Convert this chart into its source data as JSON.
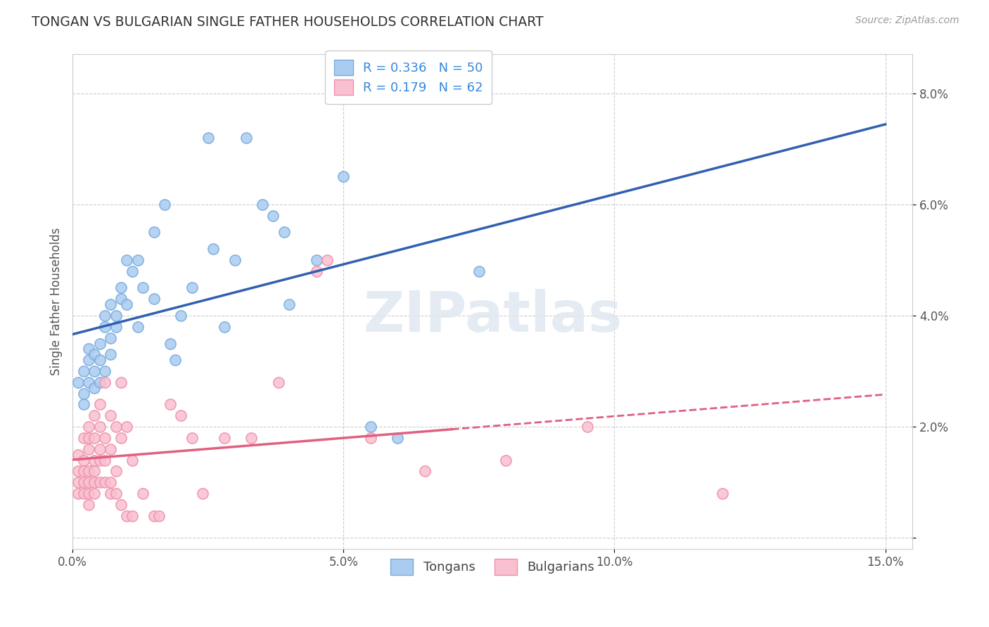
{
  "title": "TONGAN VS BULGARIAN SINGLE FATHER HOUSEHOLDS CORRELATION CHART",
  "source": "Source: ZipAtlas.com",
  "xlabel": "",
  "ylabel": "Single Father Households",
  "xlim": [
    0.0,
    0.155
  ],
  "ylim": [
    -0.002,
    0.087
  ],
  "xticks": [
    0.0,
    0.05,
    0.1,
    0.15
  ],
  "xticklabels": [
    "0.0%",
    "5.0%",
    "10.0%",
    "15.0%"
  ],
  "yticks": [
    0.0,
    0.02,
    0.04,
    0.06,
    0.08
  ],
  "yticklabels": [
    "",
    "2.0%",
    "4.0%",
    "6.0%",
    "8.0%"
  ],
  "tongan_color_fill": "#aaccf0",
  "tongan_color_edge": "#7aabde",
  "bulgarian_color_fill": "#f8c0d0",
  "bulgarian_color_edge": "#f090a8",
  "tongan_line_color": "#3060b0",
  "bulgarian_line_color": "#e06080",
  "R_tongan": 0.336,
  "N_tongan": 50,
  "R_bulgarian": 0.179,
  "N_bulgarian": 62,
  "legend_label_color": "#3388dd",
  "tongan_scatter": [
    [
      0.001,
      0.028
    ],
    [
      0.002,
      0.026
    ],
    [
      0.002,
      0.03
    ],
    [
      0.002,
      0.024
    ],
    [
      0.003,
      0.032
    ],
    [
      0.003,
      0.034
    ],
    [
      0.003,
      0.028
    ],
    [
      0.004,
      0.03
    ],
    [
      0.004,
      0.027
    ],
    [
      0.004,
      0.033
    ],
    [
      0.005,
      0.028
    ],
    [
      0.005,
      0.035
    ],
    [
      0.005,
      0.032
    ],
    [
      0.006,
      0.04
    ],
    [
      0.006,
      0.03
    ],
    [
      0.006,
      0.038
    ],
    [
      0.007,
      0.033
    ],
    [
      0.007,
      0.036
    ],
    [
      0.007,
      0.042
    ],
    [
      0.008,
      0.04
    ],
    [
      0.008,
      0.038
    ],
    [
      0.009,
      0.043
    ],
    [
      0.009,
      0.045
    ],
    [
      0.01,
      0.05
    ],
    [
      0.01,
      0.042
    ],
    [
      0.011,
      0.048
    ],
    [
      0.012,
      0.05
    ],
    [
      0.012,
      0.038
    ],
    [
      0.013,
      0.045
    ],
    [
      0.015,
      0.055
    ],
    [
      0.015,
      0.043
    ],
    [
      0.017,
      0.06
    ],
    [
      0.018,
      0.035
    ],
    [
      0.019,
      0.032
    ],
    [
      0.02,
      0.04
    ],
    [
      0.022,
      0.045
    ],
    [
      0.025,
      0.072
    ],
    [
      0.026,
      0.052
    ],
    [
      0.028,
      0.038
    ],
    [
      0.03,
      0.05
    ],
    [
      0.032,
      0.072
    ],
    [
      0.035,
      0.06
    ],
    [
      0.037,
      0.058
    ],
    [
      0.039,
      0.055
    ],
    [
      0.04,
      0.042
    ],
    [
      0.045,
      0.05
    ],
    [
      0.05,
      0.065
    ],
    [
      0.055,
      0.02
    ],
    [
      0.06,
      0.018
    ],
    [
      0.075,
      0.048
    ]
  ],
  "bulgarian_scatter": [
    [
      0.001,
      0.01
    ],
    [
      0.001,
      0.012
    ],
    [
      0.001,
      0.008
    ],
    [
      0.001,
      0.015
    ],
    [
      0.002,
      0.01
    ],
    [
      0.002,
      0.014
    ],
    [
      0.002,
      0.008
    ],
    [
      0.002,
      0.018
    ],
    [
      0.002,
      0.012
    ],
    [
      0.003,
      0.01
    ],
    [
      0.003,
      0.016
    ],
    [
      0.003,
      0.008
    ],
    [
      0.003,
      0.02
    ],
    [
      0.003,
      0.012
    ],
    [
      0.003,
      0.018
    ],
    [
      0.003,
      0.006
    ],
    [
      0.004,
      0.008
    ],
    [
      0.004,
      0.014
    ],
    [
      0.004,
      0.01
    ],
    [
      0.004,
      0.018
    ],
    [
      0.004,
      0.012
    ],
    [
      0.004,
      0.022
    ],
    [
      0.005,
      0.016
    ],
    [
      0.005,
      0.01
    ],
    [
      0.005,
      0.02
    ],
    [
      0.005,
      0.014
    ],
    [
      0.005,
      0.024
    ],
    [
      0.006,
      0.01
    ],
    [
      0.006,
      0.018
    ],
    [
      0.006,
      0.028
    ],
    [
      0.006,
      0.014
    ],
    [
      0.007,
      0.022
    ],
    [
      0.007,
      0.008
    ],
    [
      0.007,
      0.016
    ],
    [
      0.007,
      0.01
    ],
    [
      0.008,
      0.012
    ],
    [
      0.008,
      0.008
    ],
    [
      0.008,
      0.02
    ],
    [
      0.009,
      0.006
    ],
    [
      0.009,
      0.018
    ],
    [
      0.009,
      0.028
    ],
    [
      0.01,
      0.004
    ],
    [
      0.01,
      0.02
    ],
    [
      0.011,
      0.014
    ],
    [
      0.011,
      0.004
    ],
    [
      0.013,
      0.008
    ],
    [
      0.015,
      0.004
    ],
    [
      0.016,
      0.004
    ],
    [
      0.018,
      0.024
    ],
    [
      0.02,
      0.022
    ],
    [
      0.022,
      0.018
    ],
    [
      0.024,
      0.008
    ],
    [
      0.028,
      0.018
    ],
    [
      0.033,
      0.018
    ],
    [
      0.038,
      0.028
    ],
    [
      0.045,
      0.048
    ],
    [
      0.047,
      0.05
    ],
    [
      0.055,
      0.018
    ],
    [
      0.065,
      0.012
    ],
    [
      0.08,
      0.014
    ],
    [
      0.095,
      0.02
    ],
    [
      0.12,
      0.008
    ]
  ]
}
